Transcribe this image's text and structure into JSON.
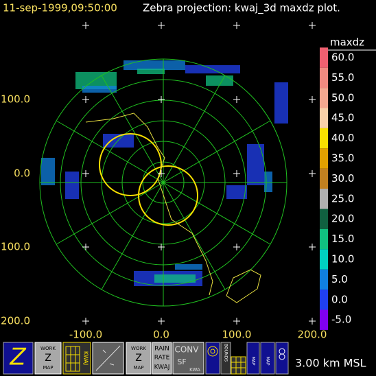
{
  "header": {
    "time": "11-sep-1999,09:50:00",
    "title": "Zebra projection: kwaj_3d maxdz plot."
  },
  "axes": {
    "y_labels": [
      "100.0",
      "0.0",
      "100.0",
      "200.0"
    ],
    "x_labels": [
      "-100.0",
      "0.0",
      "100.0",
      "200.0"
    ]
  },
  "colorbar": {
    "title": "maxdz",
    "labels": [
      "60.0",
      "55.0",
      "50.0",
      "45.0",
      "40.0",
      "35.0",
      "30.0",
      "25.0",
      "20.0",
      "15.0",
      "10.0",
      "5.0",
      "0.0",
      "-5.0"
    ],
    "colors": [
      "#f06070",
      "#f08a80",
      "#f4a890",
      "#f8d0a8",
      "#f8e000",
      "#e0a000",
      "#c08020",
      "#b0b0b0",
      "#106040",
      "#10c080",
      "#00d0c0",
      "#1080e0",
      "#2040f0",
      "#8000f0"
    ]
  },
  "toolbar": {
    "z": "Z",
    "work1": [
      "WORK",
      "Z",
      "MAP"
    ],
    "kwaj": "KWAJ",
    "work2": [
      "WORK",
      "Z",
      "MAP"
    ],
    "rain": [
      "RAIN",
      "RATE",
      "KWAJ"
    ],
    "conv": [
      "CONV",
      "SF",
      "KWA"
    ],
    "bounds": "BOUNDS",
    "map1": "MAP",
    "map2": "MAP"
  },
  "status": "3.00 km MSL"
}
